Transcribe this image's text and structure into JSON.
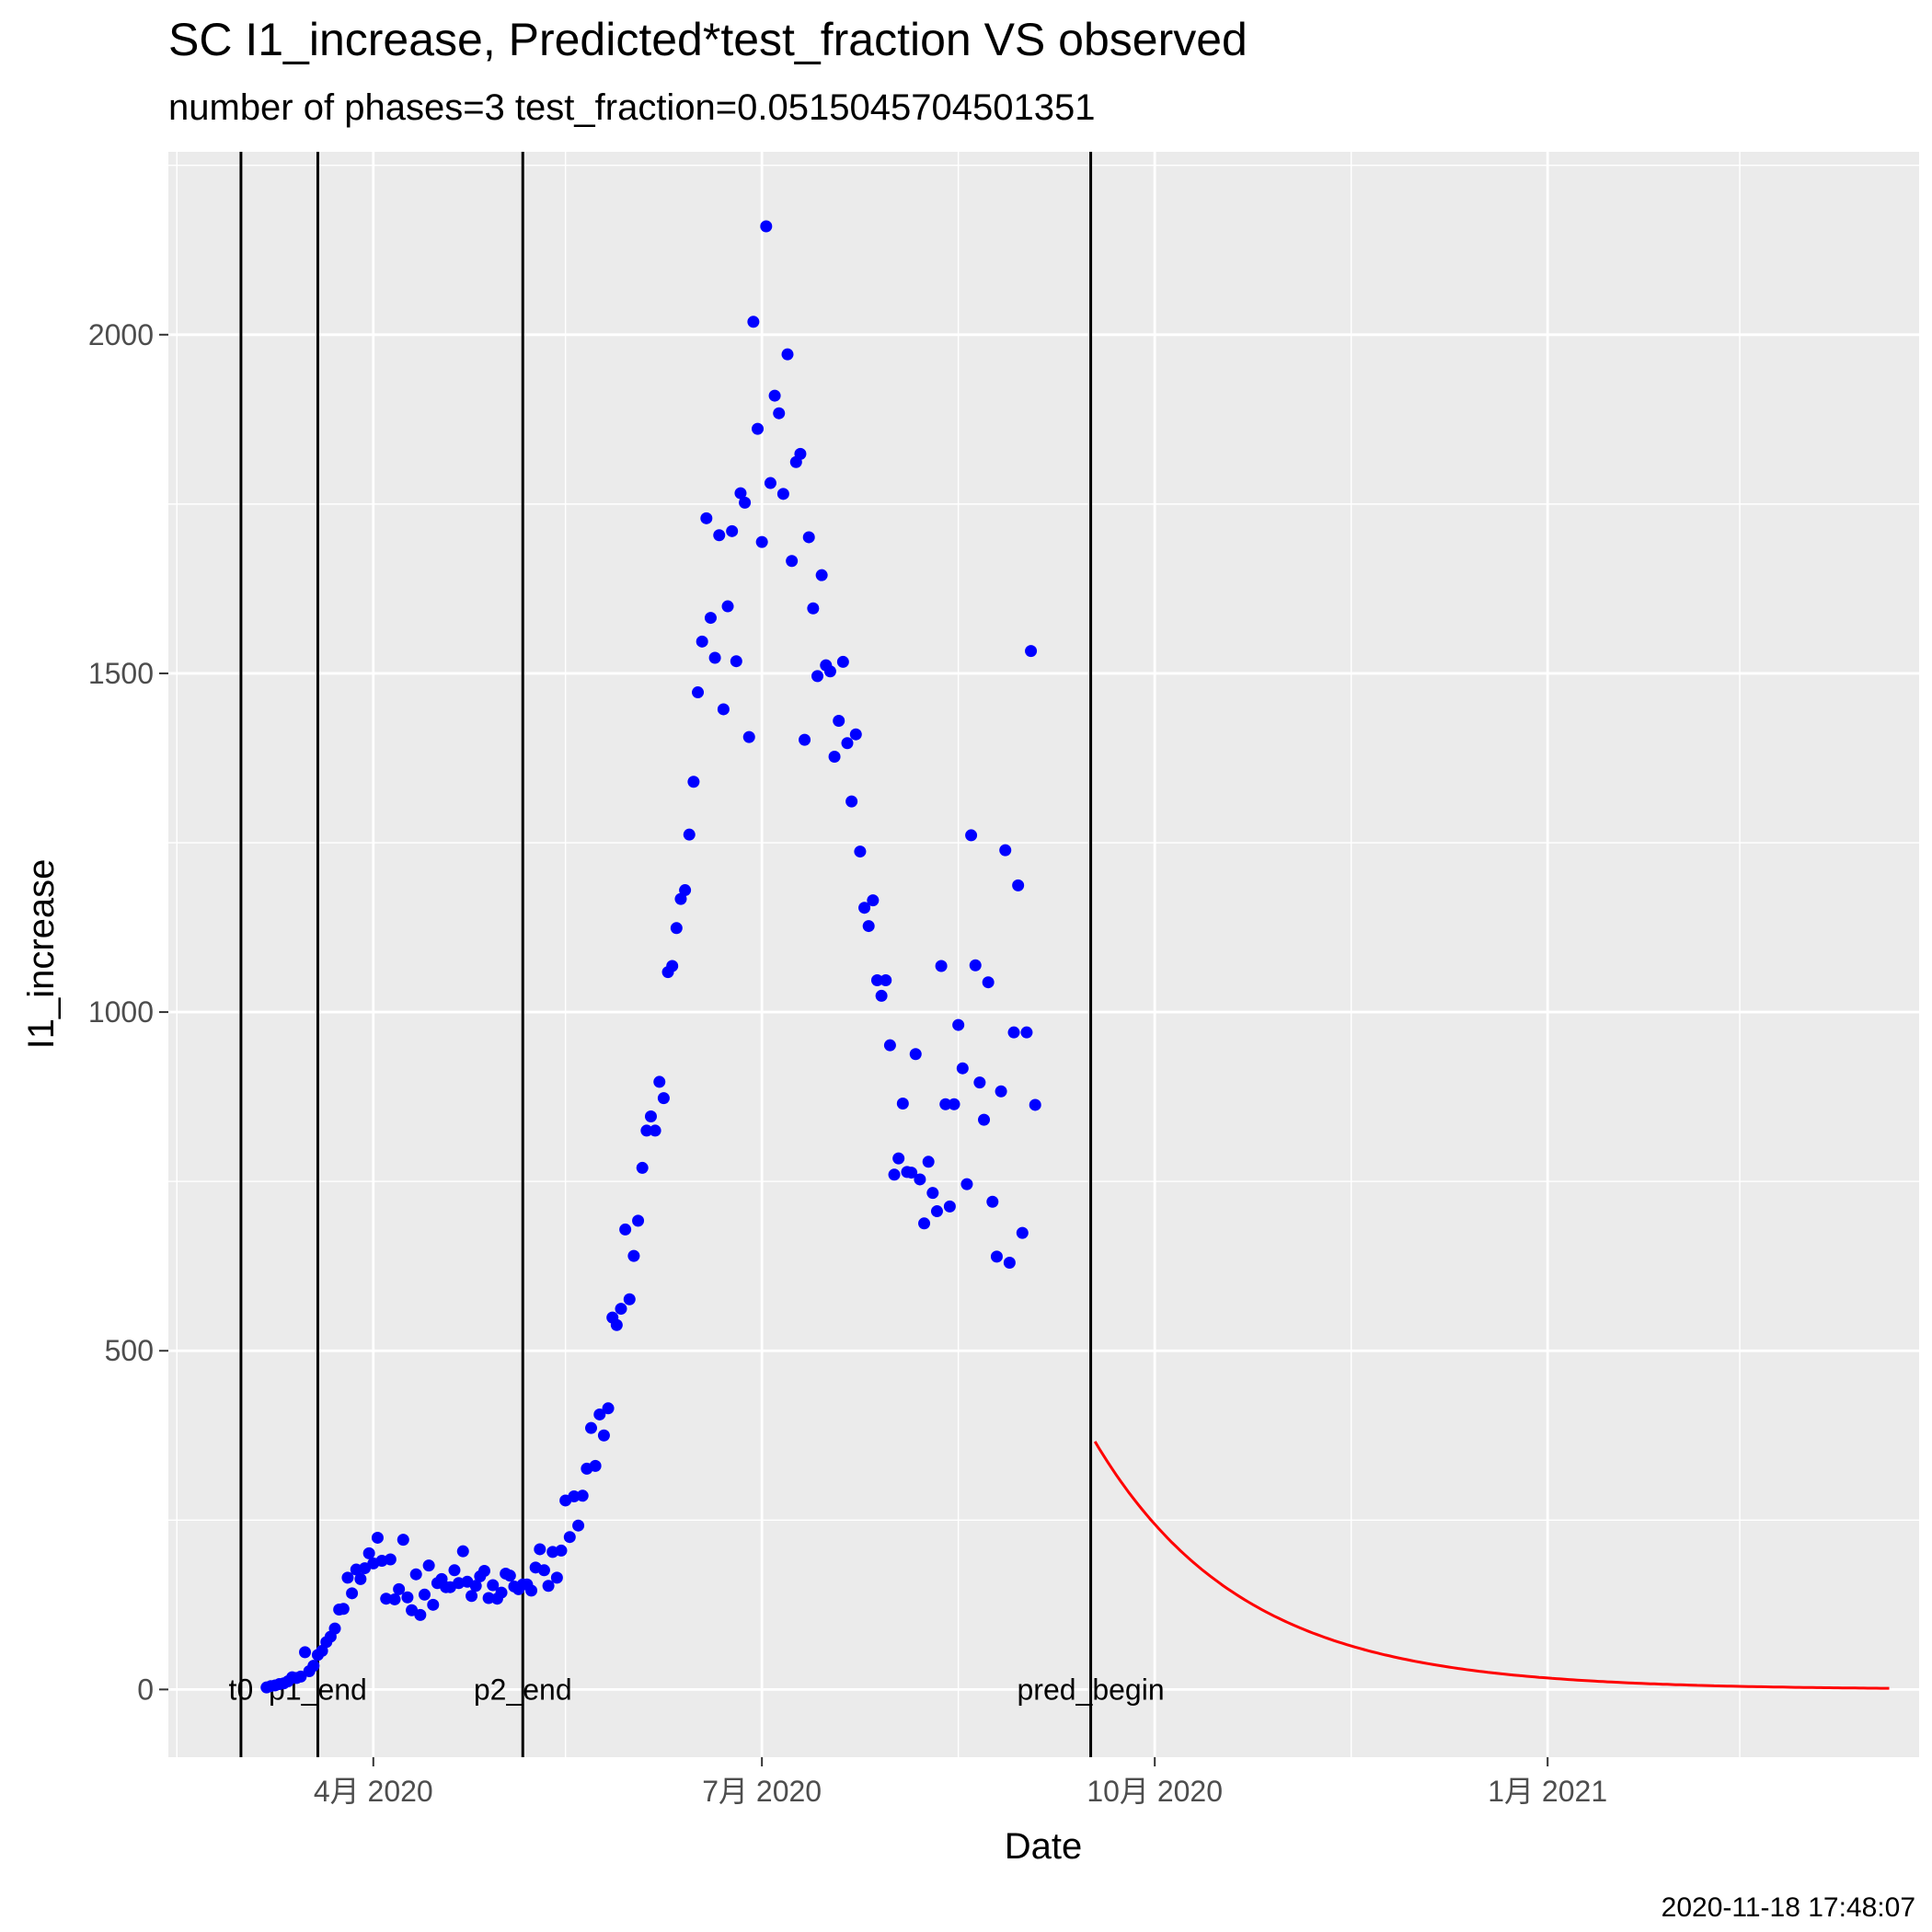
{
  "chart_data": {
    "type": "scatter",
    "title": "SC I1_increase, Predicted*test_fraction VS observed",
    "subtitle": "number of phases=3   test_fraction=0.0515045704501351",
    "xlabel": "Date",
    "ylabel": "I1_increase",
    "timestamp": "2020-11-18 17:48:07",
    "xlim": [
      "2020-02-13",
      "2021-03-29"
    ],
    "ylim": [
      -100,
      2270
    ],
    "grid": true,
    "colors": {
      "panel": "#ebebeb",
      "grid": "#ffffff",
      "observed": "#0000ff",
      "predicted": "#ff0000",
      "vline": "#000000"
    },
    "y_ticks": [
      0,
      500,
      1000,
      1500,
      2000
    ],
    "x_ticks": [
      {
        "date": "2020-04-01",
        "label": "4月 2020"
      },
      {
        "date": "2020-07-01",
        "label": "7月 2020"
      },
      {
        "date": "2020-10-01",
        "label": "10月 2020"
      },
      {
        "date": "2021-01-01",
        "label": "1月 2021"
      }
    ],
    "x_minor_ticks": [
      "2020-02-15",
      "2020-05-16",
      "2020-08-16",
      "2020-11-16",
      "2021-02-15"
    ],
    "vlines": [
      {
        "date": "2020-03-01",
        "label": "t0"
      },
      {
        "date": "2020-03-19",
        "label": "p1_end"
      },
      {
        "date": "2020-05-06",
        "label": "p2_end"
      },
      {
        "date": "2020-09-16",
        "label": "pred_begin"
      }
    ],
    "series": [
      {
        "type": "scatter",
        "start": "2020-03-07",
        "y": [
          3,
          5,
          6,
          8,
          9,
          12,
          18,
          17,
          19,
          55,
          27,
          35,
          51,
          57,
          70,
          78,
          90,
          118,
          119,
          165,
          142,
          177,
          163,
          179,
          201,
          186,
          224,
          190,
          134,
          192,
          133,
          148,
          221,
          136,
          117,
          170,
          110,
          140,
          183,
          125,
          157,
          163,
          151,
          151,
          176,
          157,
          204,
          159,
          138,
          153,
          167,
          175,
          135,
          154,
          134,
          143,
          171,
          168,
          152,
          148,
          155,
          155,
          146,
          180,
          207,
          176,
          153,
          203,
          165,
          205,
          279,
          225,
          285,
          242,
          286,
          326,
          386,
          330,
          406,
          375,
          415,
          549,
          538,
          562,
          679,
          576,
          640,
          692,
          770,
          825,
          846,
          825,
          897,
          873,
          1059,
          1068,
          1124,
          1167,
          1180,
          1262,
          1340,
          1472,
          1547,
          1729,
          1582,
          1523,
          1704,
          1447,
          1599,
          1710,
          1518,
          1766,
          1752,
          1406,
          2019,
          1861,
          1694,
          2160,
          1781,
          1910,
          1884,
          1765,
          1971,
          1666,
          1812,
          1824,
          1402,
          1701,
          1596,
          1496,
          1645,
          1512,
          1503,
          1377,
          1430,
          1517,
          1397,
          1311,
          1410,
          1237,
          1154,
          1127,
          1165,
          1047,
          1024,
          1047,
          951,
          760,
          784,
          865,
          764,
          763,
          938,
          753,
          688,
          779,
          733,
          706,
          1068,
          864,
          713,
          864,
          981,
          917,
          746,
          1261,
          1069,
          896,
          841,
          1044,
          720,
          639,
          883,
          1239,
          630,
          970,
          1187,
          674,
          970,
          1533,
          863
        ]
      },
      {
        "type": "line",
        "start": "2020-09-17",
        "end": "2021-03-22",
        "y0": 366,
        "decay_per_day": 0.029
      }
    ]
  }
}
